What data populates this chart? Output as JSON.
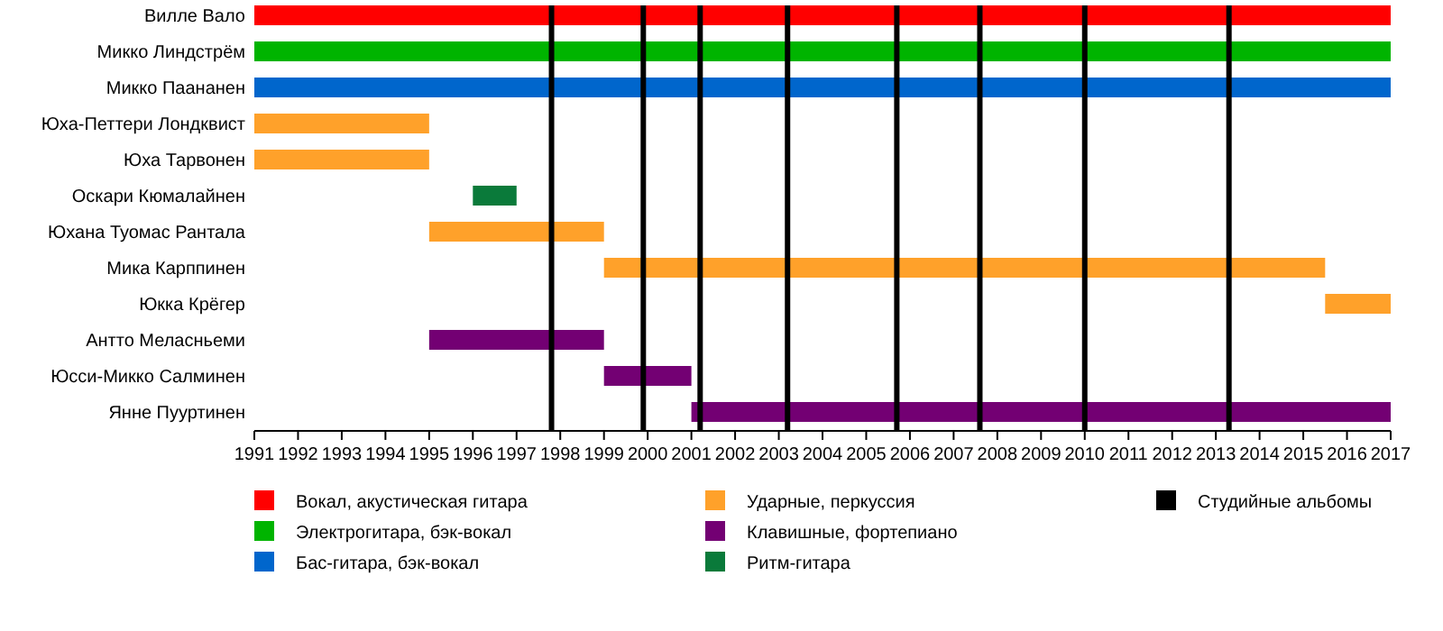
{
  "chart_data": {
    "type": "bar",
    "orientation": "horizontal",
    "legend": "bottom",
    "categories": [
      "Вилле Вало",
      "Микко Линдстрём",
      "Микко Паананен",
      "Юха-Петтери Лондквист",
      "Юха Тарвонен",
      "Оскари Кюмалайнен",
      "Юхана Туомас Рантала",
      "Мика Карппинен",
      "Юкка Крёгер",
      "Антто Меласньеми",
      "Юсси-Микко Салминен",
      "Янне Пууртинен"
    ],
    "xlim": [
      1991,
      2017
    ],
    "xticks": [
      1991,
      1992,
      1993,
      1994,
      1995,
      1996,
      1997,
      1998,
      1999,
      2000,
      2001,
      2002,
      2003,
      2004,
      2005,
      2006,
      2007,
      2008,
      2009,
      2010,
      2011,
      2012,
      2013,
      2014,
      2015,
      2016,
      2017
    ],
    "series": [
      {
        "name": "Вокал, акустическая гитара",
        "color": "#ff0000",
        "base": [
          1991,
          null,
          null,
          null,
          null,
          null,
          null,
          null,
          null,
          null,
          null,
          null
        ],
        "values": [
          26,
          null,
          null,
          null,
          null,
          null,
          null,
          null,
          null,
          null,
          null,
          null
        ]
      },
      {
        "name": "Электрогитара, бэк-вокал",
        "color": "#00b400",
        "base": [
          null,
          1991,
          null,
          null,
          null,
          null,
          null,
          null,
          null,
          null,
          null,
          null
        ],
        "values": [
          null,
          26,
          null,
          null,
          null,
          null,
          null,
          null,
          null,
          null,
          null,
          null
        ]
      },
      {
        "name": "Бас-гитара, бэк-вокал",
        "color": "#0066cc",
        "base": [
          null,
          null,
          1991,
          null,
          null,
          null,
          null,
          null,
          null,
          null,
          null,
          null
        ],
        "values": [
          null,
          null,
          26,
          null,
          null,
          null,
          null,
          null,
          null,
          null,
          null,
          null
        ]
      },
      {
        "name": "Ударные, перкуссия",
        "color": "#ffa12a",
        "base": [
          null,
          null,
          null,
          1991,
          1991,
          null,
          1995,
          1999,
          2015.5,
          null,
          null,
          null
        ],
        "values": [
          null,
          null,
          null,
          4,
          4,
          null,
          4,
          16.5,
          1.5,
          null,
          null,
          null
        ]
      },
      {
        "name": "Клавишные, фортепиано",
        "color": "#730073",
        "base": [
          null,
          null,
          null,
          null,
          null,
          null,
          null,
          null,
          null,
          1995,
          1999,
          2001
        ],
        "values": [
          null,
          null,
          null,
          null,
          null,
          null,
          null,
          null,
          null,
          4,
          2,
          16
        ]
      },
      {
        "name": "Ритм-гитара",
        "color": "#0a7a3a",
        "base": [
          null,
          null,
          null,
          null,
          null,
          1996,
          null,
          null,
          null,
          null,
          null,
          null
        ],
        "values": [
          null,
          null,
          null,
          null,
          null,
          1,
          null,
          null,
          null,
          null,
          null,
          null
        ]
      }
    ],
    "ref_lines": [
      {
        "axis": "x",
        "value": 1997.8,
        "label": "Студийные альбомы",
        "color": "#000000"
      },
      {
        "axis": "x",
        "value": 1999.9,
        "color": "#000000"
      },
      {
        "axis": "x",
        "value": 2001.2,
        "color": "#000000"
      },
      {
        "axis": "x",
        "value": 2003.2,
        "color": "#000000"
      },
      {
        "axis": "x",
        "value": 2005.7,
        "color": "#000000"
      },
      {
        "axis": "x",
        "value": 2007.6,
        "color": "#000000"
      },
      {
        "axis": "x",
        "value": 2010,
        "color": "#000000"
      },
      {
        "axis": "x",
        "value": 2013.3,
        "color": "#000000"
      }
    ]
  }
}
